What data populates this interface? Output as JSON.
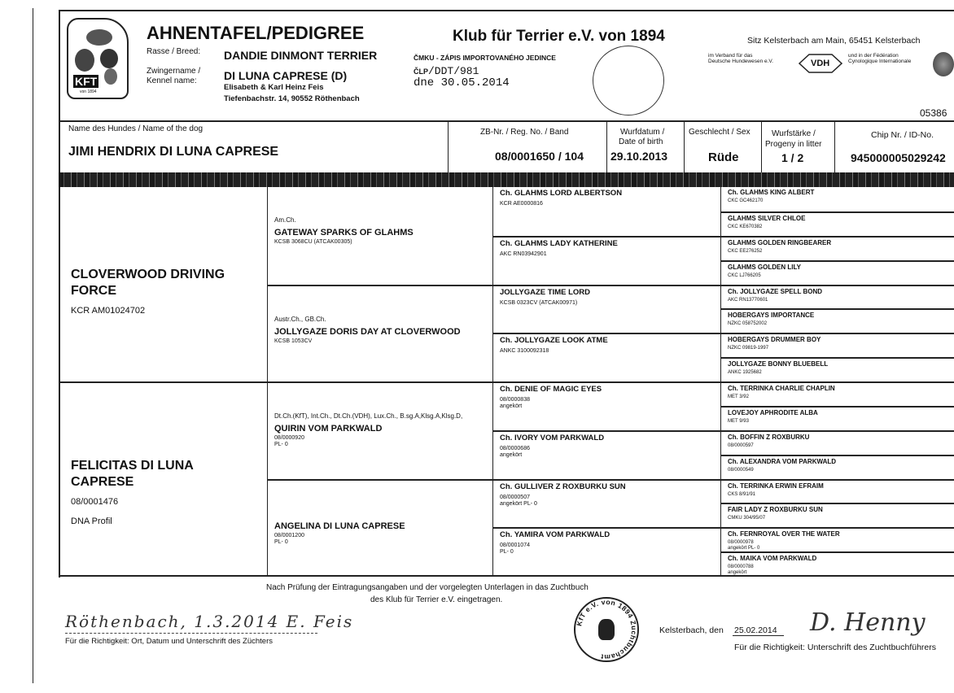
{
  "header": {
    "title": "AHNENTAFEL/PEDIGREE",
    "logo_text": "KFT",
    "logo_sub": "von 1894",
    "breed_label": "Rasse / Breed:",
    "breed": "DANDIE DINMONT TERRIER",
    "kennel_label_1": "Zwingername /",
    "kennel_label_2": "Kennel name:",
    "kennel": "DI LUNA CAPRESE (D)",
    "owner": "Elisabeth & Karl Heinz Feis",
    "address": "Tiefenbachstr. 14, 90552 Röthenbach",
    "club": "Klub für Terrier e.V. von 1894",
    "czech_import": "ČMKU - ZÁPIS IMPORTOVANÉHO JEDINCE",
    "clp_prefix": "ČLP",
    "clp_number": "/DDT/981",
    "clp_date": "dne 30.05.2014",
    "seat": "Sitz Kelsterbach am Main, 65451 Kelsterbach",
    "vdh_text_1": "im Verband für das",
    "vdh_text_2": "Deutsche Hundewesen e.V.",
    "vdh_logo": "VDH",
    "fci_text_1": "und in der Fédération",
    "fci_text_2": "Cynologique Internationale",
    "doc_number": "05386"
  },
  "dog": {
    "name_label": "Name des Hundes / Name of the dog",
    "name": "JIMI HENDRIX DI LUNA CAPRESE",
    "reg_label": "ZB-Nr. / Reg. No. / Band",
    "reg": "08/0001650 / 104",
    "dob_label_1": "Wurfdatum /",
    "dob_label_2": "Date of birth",
    "dob": "29.10.2013",
    "sex_label": "Geschlecht / Sex",
    "sex": "Rüde",
    "litter_label_1": "Wurfstärke /",
    "litter_label_2": "Progeny in litter",
    "litter": "1 / 2",
    "chip_label": "Chip Nr. / ID-No.",
    "chip": "945000005029242"
  },
  "pedigree": {
    "parents": [
      {
        "name": "CLOVERWOOD DRIVING FORCE",
        "reg": "KCR AM01024702",
        "extra": ""
      },
      {
        "name": "FELICITAS DI LUNA CAPRESE",
        "reg": "08/0001476",
        "extra": "DNA Profil"
      }
    ],
    "grandparents": [
      {
        "title": "Am.Ch.",
        "name": "GATEWAY SPARKS OF GLAHMS",
        "reg": "KCSB 3068CU (ATCAK00305)"
      },
      {
        "title": "Austr.Ch., GB.Ch.",
        "name": "JOLLYGAZE DORIS DAY AT CLOVERWOOD",
        "reg": "KCSB 1053CV"
      },
      {
        "title": "Dt.Ch.(KfT), Int.Ch., Dt.Ch.(VDH), Lux.Ch., B.sg.A,Klsg.A,Klsg.D,",
        "name": "QUIRIN VOM PARKWALD",
        "reg": "08/0000920\nPL- 0"
      },
      {
        "title": "",
        "name": "ANGELINA DI LUNA CAPRESE",
        "reg": "08/0001200\nPL- 0"
      }
    ],
    "great_grandparents": [
      {
        "name": "Ch. GLAHMS LORD ALBERTSON",
        "reg": "KCR AE0000816"
      },
      {
        "name": "Ch. GLAHMS LADY KATHERINE",
        "reg": "AKC RN03942901"
      },
      {
        "name": "JOLLYGAZE TIME LORD",
        "reg": "KCSB 0323CV (ATCAK00971)"
      },
      {
        "name": "Ch. JOLLYGAZE LOOK ATME",
        "reg": "ANKC 3100092318"
      },
      {
        "name": "Ch. DENIE OF MAGIC EYES",
        "reg": "08/0000838\nangekört"
      },
      {
        "name": "Ch. IVORY VOM PARKWALD",
        "reg": "08/0000686\nangekört"
      },
      {
        "name": "Ch. GULLIVER Z ROXBURKU SUN",
        "reg": "08/0000507\nangekört PL- 0"
      },
      {
        "name": "Ch. YAMIRA VOM PARKWALD",
        "reg": "08/0001074\nPL- 0"
      }
    ],
    "great_great_grandparents": [
      {
        "name": "Ch. GLAHMS KING ALBERT",
        "reg": "CKC GC462170"
      },
      {
        "name": "GLAHMS SILVER CHLOE",
        "reg": "CKC KE670382"
      },
      {
        "name": "GLAHMS GOLDEN RINGBEARER",
        "reg": "CKC EE276252"
      },
      {
        "name": "GLAHMS GOLDEN LILY",
        "reg": "CKC LJ766205"
      },
      {
        "name": "Ch. JOLLYGAZE SPELL BOND",
        "reg": "AKC RN13770601"
      },
      {
        "name": "HOBERGAYS IMPORTANCE",
        "reg": "NZKC 058752002"
      },
      {
        "name": "HOBERGAYS DRUMMER BOY",
        "reg": "NZKC 09819-1997"
      },
      {
        "name": "JOLLYGAZE BONNY BLUEBELL",
        "reg": "ANKC 1925682"
      },
      {
        "name": "Ch. TERRINKA CHARLIE CHAPLIN",
        "reg": "MET 3/92"
      },
      {
        "name": "LOVEJOY APHRODITE ALBA",
        "reg": "MET 9/93"
      },
      {
        "name": "Ch. BOFFIN Z ROXBURKU",
        "reg": "08/0000597"
      },
      {
        "name": "Ch. ALEXANDRA VOM PARKWALD",
        "reg": "08/0000549"
      },
      {
        "name": "Ch. TERRINKA ERWIN EFRAIM",
        "reg": "CKS 8/91/91"
      },
      {
        "name": "FAIR LADY Z ROXBURKU SUN",
        "reg": "CMKU 304/95/07"
      },
      {
        "name": "Ch. FERNROYAL OVER THE WATER",
        "reg": "08/0000978\nangekört PL- 0"
      },
      {
        "name": "Ch. MAIKA VOM PARKWALD",
        "reg": "08/0000788\nangekört"
      }
    ]
  },
  "footer": {
    "certification_1": "Nach Prüfung der Eintragungsangaben und der vorgelegten Unterlagen in das Zuchtbuch",
    "certification_2": "des Klub für Terrier e.V. eingetragen.",
    "breeder_handwriting": "Röthenbach, 1.3.2014 E. Feis",
    "breeder_caption": "Für die Richtigkeit: Ort, Datum und  Unterschrift des Züchters",
    "stamp_text": "KfT e.V. von 1894 Zuchtbuchamt",
    "place": "Kelsterbach, den",
    "date": "25.02.2014",
    "registrar_signature": "D. Henny",
    "registrar_caption": "Für die Richtigkeit:  Unterschrift des Zuchtbuchführers"
  }
}
